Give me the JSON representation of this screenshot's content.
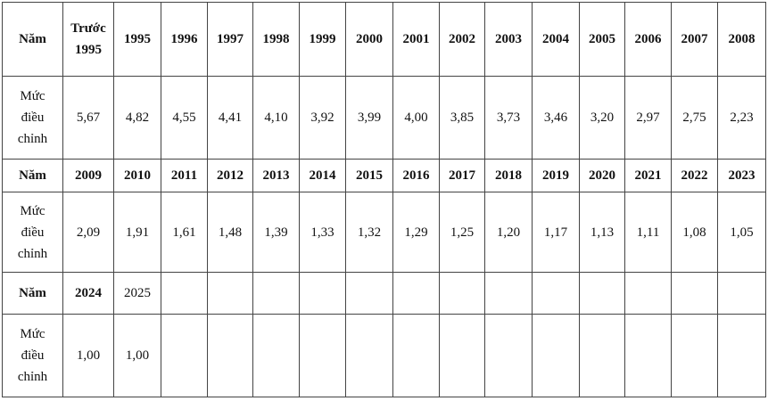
{
  "table": {
    "blocks": [
      {
        "year_label": "Năm",
        "rate_label": "Mức điều chỉnh",
        "years": [
          "Trước 1995",
          "1995",
          "1996",
          "1997",
          "1998",
          "1999",
          "2000",
          "2001",
          "2002",
          "2003",
          "2004",
          "2005",
          "2006",
          "2007",
          "2008"
        ],
        "rates": [
          "5,67",
          "4,82",
          "4,55",
          "4,41",
          "4,10",
          "3,92",
          "3,99",
          "4,00",
          "3,85",
          "3,73",
          "3,46",
          "3,20",
          "2,97",
          "2,75",
          "2,23"
        ]
      },
      {
        "year_label": "Năm",
        "rate_label": "Mức điều chỉnh",
        "years": [
          "2009",
          "2010",
          "2011",
          "2012",
          "2013",
          "2014",
          "2015",
          "2016",
          "2017",
          "2018",
          "2019",
          "2020",
          "2021",
          "2022",
          "2023"
        ],
        "rates": [
          "2,09",
          "1,91",
          "1,61",
          "1,48",
          "1,39",
          "1,33",
          "1,32",
          "1,29",
          "1,25",
          "1,20",
          "1,17",
          "1,13",
          "1,11",
          "1,08",
          "1,05"
        ]
      },
      {
        "year_label": "Năm",
        "rate_label": "Mức điều chỉnh",
        "years": [
          "2024",
          "2025"
        ],
        "rates": [
          "1,00",
          "1,00"
        ]
      }
    ]
  }
}
